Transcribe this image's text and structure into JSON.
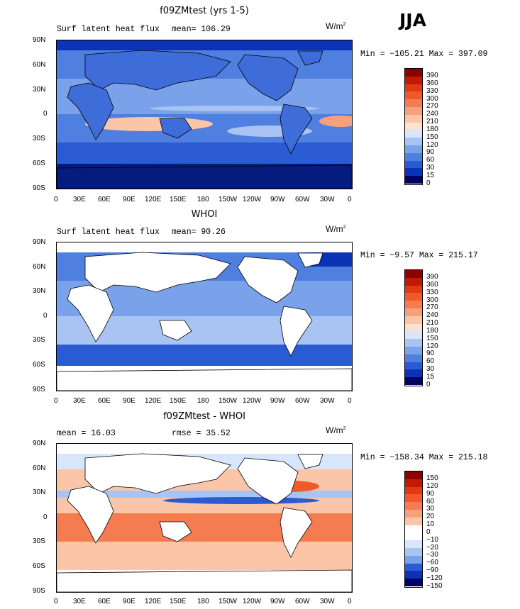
{
  "season": "JJA",
  "lat_ticks": [
    "90N",
    "60N",
    "30N",
    "0",
    "30S",
    "60S",
    "90S"
  ],
  "lon_ticks": [
    "0",
    "30E",
    "60E",
    "90E",
    "120E",
    "150E",
    "180",
    "150W",
    "120W",
    "90W",
    "60W",
    "30W",
    "0"
  ],
  "units": "W/m",
  "units_sup": "2",
  "panels": [
    {
      "title": "f09ZMtest (yrs 1-5)",
      "left_label": "Surf latent heat flux",
      "mid_label": "mean=  106.29",
      "minmax": "Min = −105.21  Max = 397.09",
      "levels": [
        "390",
        "360",
        "330",
        "300",
        "270",
        "240",
        "210",
        "180",
        "150",
        "120",
        "90",
        "60",
        "30",
        "15",
        "0"
      ],
      "colors": [
        "#8b0000",
        "#c01a00",
        "#e03a10",
        "#f05a2a",
        "#f57c50",
        "#f8a07e",
        "#fbc6a8",
        "#fde2d2",
        "#d8e6fb",
        "#a9c4f3",
        "#7aa2ea",
        "#4f7fdf",
        "#2a5bd2",
        "#0c33b5",
        "#051b7e",
        "#000066"
      ]
    },
    {
      "title": "WHOI",
      "left_label": "Surf latent heat flux",
      "mid_label": "mean=  90.26",
      "minmax": "Min =  −9.57  Max = 215.17",
      "levels": [
        "390",
        "360",
        "330",
        "300",
        "270",
        "240",
        "210",
        "180",
        "150",
        "120",
        "90",
        "60",
        "30",
        "15",
        "0"
      ],
      "colors": [
        "#8b0000",
        "#c01a00",
        "#e03a10",
        "#f05a2a",
        "#f57c50",
        "#f8a07e",
        "#fbc6a8",
        "#fde2d2",
        "#d8e6fb",
        "#a9c4f3",
        "#7aa2ea",
        "#4f7fdf",
        "#2a5bd2",
        "#0c33b5",
        "#051b7e",
        "#000066"
      ]
    },
    {
      "title": "f09ZMtest - WHOI",
      "left_label": "mean =  16.03",
      "mid_label": "rmse =  35.52",
      "minmax": "Min = −158.34  Max = 215.18",
      "levels": [
        "150",
        "120",
        "90",
        "60",
        "30",
        "20",
        "10",
        "0",
        "−10",
        "−20",
        "−30",
        "−60",
        "−90",
        "−120",
        "−150"
      ],
      "colors": [
        "#8b0000",
        "#c01a00",
        "#e03a10",
        "#f05a2a",
        "#f57c50",
        "#f8a07e",
        "#fbc6a8",
        "#ffffff",
        "#ffffff",
        "#d8e6fb",
        "#a9c4f3",
        "#7aa2ea",
        "#2a5bd2",
        "#0c33b5",
        "#051b7e",
        "#000066"
      ]
    }
  ]
}
